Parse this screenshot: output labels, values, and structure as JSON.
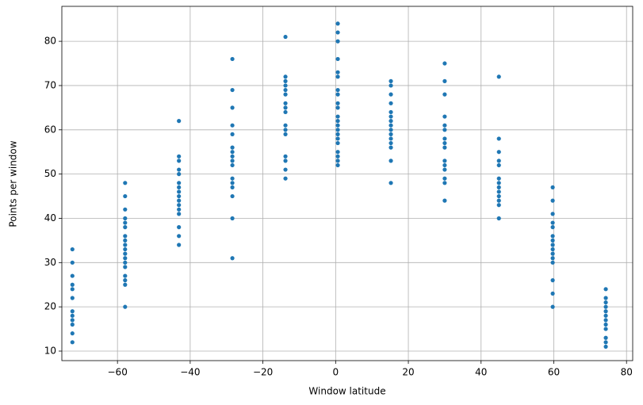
{
  "chart_data": {
    "type": "scatter",
    "xlabel": "Window latitude",
    "ylabel": "Points per window",
    "xlim": [
      -75.3,
      81.7
    ],
    "ylim": [
      7.85,
      87.9
    ],
    "xticks": [
      {
        "value": -60,
        "label": "−60"
      },
      {
        "value": -40,
        "label": "−40"
      },
      {
        "value": -20,
        "label": "−20"
      },
      0,
      20,
      40,
      60,
      80
    ],
    "yticks": [
      10,
      20,
      30,
      40,
      50,
      60,
      70,
      80
    ],
    "grid": true,
    "series": [
      {
        "color": "#1f77b4",
        "x": [
          -72.4,
          -72.4,
          -72.4,
          -72.4,
          -72.4,
          -72.4,
          -72.4,
          -72.4,
          -72.4,
          -72.4,
          -72.4,
          -72.4,
          -57.9,
          -57.9,
          -57.9,
          -57.9,
          -57.9,
          -57.9,
          -57.9,
          -57.9,
          -57.9,
          -57.9,
          -57.9,
          -57.9,
          -57.9,
          -57.9,
          -57.9,
          -57.9,
          -57.9,
          -57.9,
          -43.1,
          -43.1,
          -43.1,
          -43.1,
          -43.1,
          -43.1,
          -43.1,
          -43.1,
          -43.1,
          -43.1,
          -43.1,
          -43.1,
          -43.1,
          -43.1,
          -43.1,
          -43.1,
          -28.4,
          -28.4,
          -28.4,
          -28.4,
          -28.4,
          -28.4,
          -28.4,
          -28.4,
          -28.4,
          -28.4,
          -28.4,
          -28.4,
          -28.4,
          -28.4,
          -28.4,
          -28.4,
          -13.8,
          -13.8,
          -13.8,
          -13.8,
          -13.8,
          -13.8,
          -13.8,
          -13.8,
          -13.8,
          -13.8,
          -13.8,
          -13.8,
          -13.8,
          -13.8,
          -13.8,
          -13.8,
          0.6,
          0.6,
          0.6,
          0.6,
          0.6,
          0.6,
          0.6,
          0.6,
          0.6,
          0.6,
          0.6,
          0.6,
          0.6,
          0.6,
          0.6,
          0.6,
          0.6,
          0.6,
          0.6,
          0.6,
          0.6,
          15.2,
          15.2,
          15.2,
          15.2,
          15.2,
          15.2,
          15.2,
          15.2,
          15.2,
          15.2,
          15.2,
          15.2,
          15.2,
          15.2,
          15.2,
          30.0,
          30.0,
          30.0,
          30.0,
          30.0,
          30.0,
          30.0,
          30.0,
          30.0,
          30.0,
          30.0,
          30.0,
          30.0,
          30.0,
          30.0,
          44.9,
          44.9,
          44.9,
          44.9,
          44.9,
          44.9,
          44.9,
          44.9,
          44.9,
          44.9,
          44.9,
          44.9,
          44.9,
          59.7,
          59.7,
          59.7,
          59.7,
          59.7,
          59.7,
          59.7,
          59.7,
          59.7,
          59.7,
          59.7,
          59.7,
          59.7,
          59.7,
          59.7,
          74.3,
          74.3,
          74.3,
          74.3,
          74.3,
          74.3,
          74.3,
          74.3,
          74.3,
          74.3,
          74.3,
          74.3
        ],
        "values": [
          33,
          30,
          27,
          25,
          24,
          22,
          19,
          18,
          17,
          16,
          14,
          12,
          48,
          45,
          42,
          40,
          39,
          38,
          36,
          35,
          34,
          33,
          32,
          31,
          30,
          29,
          27,
          26,
          25,
          20,
          62,
          54,
          53,
          51,
          50,
          48,
          47,
          46,
          45,
          44,
          43,
          42,
          41,
          38,
          36,
          34,
          76,
          69,
          65,
          61,
          59,
          56,
          55,
          54,
          53,
          52,
          49,
          48,
          47,
          45,
          40,
          31,
          81,
          72,
          71,
          70,
          69,
          68,
          66,
          65,
          64,
          61,
          60,
          59,
          54,
          53,
          51,
          49,
          84,
          82,
          80,
          76,
          73,
          72,
          69,
          68,
          66,
          65,
          63,
          62,
          61,
          60,
          59,
          58,
          57,
          55,
          54,
          53,
          52,
          71,
          70,
          68,
          66,
          64,
          63,
          62,
          61,
          60,
          59,
          58,
          57,
          56,
          53,
          48,
          75,
          71,
          68,
          63,
          61,
          60,
          58,
          57,
          56,
          53,
          52,
          51,
          49,
          48,
          44,
          72,
          58,
          55,
          53,
          52,
          49,
          48,
          47,
          46,
          45,
          44,
          43,
          40,
          47,
          44,
          41,
          39,
          38,
          36,
          35,
          34,
          33,
          32,
          31,
          30,
          26,
          23,
          20,
          24,
          22,
          21,
          20,
          19,
          18,
          17,
          16,
          15,
          13,
          12,
          11
        ]
      }
    ]
  }
}
